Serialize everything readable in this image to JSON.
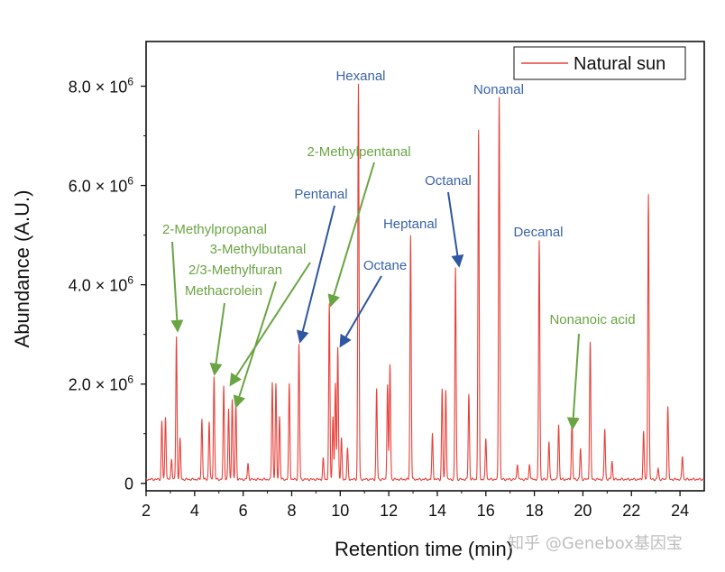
{
  "chart_data": {
    "type": "line",
    "title": "",
    "xlabel": "Retention time (min)",
    "ylabel": "Abundance (A.U.)",
    "xlim": [
      2,
      25
    ],
    "ylim": [
      -150000,
      8900000
    ],
    "xticks": [
      2,
      4,
      6,
      8,
      10,
      12,
      14,
      16,
      18,
      20,
      22,
      24
    ],
    "yticks": [
      {
        "value": 0,
        "mantissa": "0",
        "exp": ""
      },
      {
        "value": 2000000,
        "mantissa": "2.0 × 10",
        "exp": "6"
      },
      {
        "value": 4000000,
        "mantissa": "4.0 × 10",
        "exp": "6"
      },
      {
        "value": 6000000,
        "mantissa": "6.0 × 10",
        "exp": "6"
      },
      {
        "value": 8000000,
        "mantissa": "8.0 × 10",
        "exp": "6"
      }
    ],
    "legend": {
      "position": "top-right"
    },
    "grid": false,
    "series": [
      {
        "name": "Natural sun",
        "color": "#e8413a",
        "baseline": 80000,
        "peaks": [
          [
            2.65,
            1250000
          ],
          [
            2.8,
            1350000
          ],
          [
            3.05,
            500000
          ],
          [
            3.25,
            2950000
          ],
          [
            3.4,
            900000
          ],
          [
            4.3,
            1300000
          ],
          [
            4.6,
            1250000
          ],
          [
            4.8,
            2150000
          ],
          [
            5.2,
            1950000
          ],
          [
            5.4,
            1500000
          ],
          [
            5.55,
            1700000
          ],
          [
            5.7,
            1600000
          ],
          [
            6.2,
            400000
          ],
          [
            7.2,
            2050000
          ],
          [
            7.35,
            2000000
          ],
          [
            7.5,
            1350000
          ],
          [
            7.9,
            2000000
          ],
          [
            8.3,
            2800000
          ],
          [
            9.3,
            500000
          ],
          [
            9.55,
            3600000
          ],
          [
            9.7,
            1350000
          ],
          [
            9.8,
            2000000
          ],
          [
            9.9,
            2750000
          ],
          [
            10.05,
            900000
          ],
          [
            10.3,
            700000
          ],
          [
            10.75,
            8050000
          ],
          [
            11.5,
            1900000
          ],
          [
            11.95,
            2000000
          ],
          [
            12.05,
            2400000
          ],
          [
            12.9,
            5000000
          ],
          [
            13.8,
            1000000
          ],
          [
            14.2,
            1900000
          ],
          [
            14.35,
            1900000
          ],
          [
            14.75,
            4350000
          ],
          [
            15.3,
            1800000
          ],
          [
            15.7,
            7100000
          ],
          [
            16.0,
            900000
          ],
          [
            16.55,
            7800000
          ],
          [
            17.3,
            400000
          ],
          [
            17.8,
            400000
          ],
          [
            18.2,
            4900000
          ],
          [
            18.6,
            850000
          ],
          [
            19.0,
            1200000
          ],
          [
            19.55,
            1300000
          ],
          [
            19.9,
            700000
          ],
          [
            20.3,
            2850000
          ],
          [
            20.9,
            1100000
          ],
          [
            21.2,
            450000
          ],
          [
            22.5,
            1050000
          ],
          [
            22.7,
            5850000
          ],
          [
            23.1,
            300000
          ],
          [
            23.5,
            1550000
          ],
          [
            24.1,
            550000
          ]
        ]
      }
    ],
    "annotations": [
      {
        "text": "Hexanal",
        "color": "#3a63a8",
        "arrow": false
      },
      {
        "text": "Nonanal",
        "color": "#3a63a8",
        "arrow": false
      },
      {
        "text": "2-Methylpentanal",
        "color": "#6aa443",
        "arrow": true,
        "target": [
          9.6,
          3650000
        ]
      },
      {
        "text": "Octanal",
        "color": "#3a63a8",
        "arrow": true,
        "target": [
          14.8,
          4450000
        ]
      },
      {
        "text": "Pentanal",
        "color": "#3a63a8",
        "arrow": true,
        "target": [
          8.35,
          2900000
        ]
      },
      {
        "text": "Heptanal",
        "color": "#3a63a8",
        "arrow": false
      },
      {
        "text": "Decanal",
        "color": "#3a63a8",
        "arrow": false
      },
      {
        "text": "2-Methylpropanal",
        "color": "#6aa443",
        "arrow": true,
        "target": [
          3.25,
          3050000
        ]
      },
      {
        "text": "3-Methylbutanal",
        "color": "#6aa443",
        "arrow": true,
        "target": [
          5.25,
          2000000
        ]
      },
      {
        "text": "2/3-Methylfuran",
        "color": "#6aa443",
        "arrow": true,
        "target": [
          5.65,
          1750000
        ]
      },
      {
        "text": "Methacrolein",
        "color": "#6aa443",
        "arrow": true,
        "target": [
          4.8,
          2250000
        ]
      },
      {
        "text": "Octane",
        "color": "#3a63a8",
        "arrow": true,
        "target": [
          9.95,
          2850000
        ]
      },
      {
        "text": "Nonanoic acid",
        "color": "#6aa443",
        "arrow": true,
        "target": [
          19.5,
          1400000
        ]
      },
      {
        "text": "2-Methylpentanal",
        "color": "#6aa443",
        "arrow": false,
        "duplicate": true
      }
    ]
  },
  "watermark": "知乎 @Genebox基因宝"
}
